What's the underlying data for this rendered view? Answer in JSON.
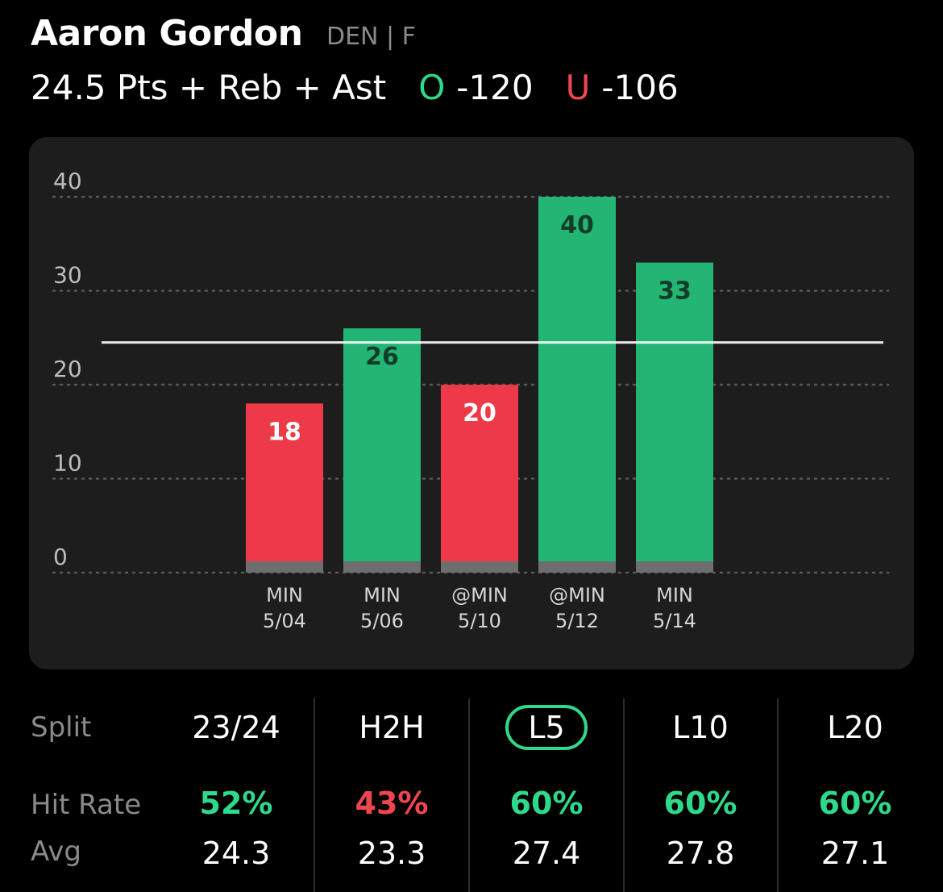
{
  "player": {
    "name": "Aaron Gordon",
    "meta": "DEN | F"
  },
  "line": {
    "market": "24.5 Pts + Reb + Ast",
    "over_letter": "O",
    "over_odds": "-120",
    "under_letter": "U",
    "under_odds": "-106"
  },
  "colors": {
    "over": "#2fd98b",
    "under": "#f0464d",
    "bar_over": "#22b573",
    "bar_under": "#ee3a48",
    "card": "#1d1d1d"
  },
  "chart_data": {
    "type": "bar",
    "ylim": [
      0,
      40
    ],
    "yticks": [
      0,
      10,
      20,
      30,
      40
    ],
    "line_value": 24.5,
    "grid": "dotted-horizontal",
    "categories": [
      {
        "opp": "MIN",
        "date": "5/04"
      },
      {
        "opp": "MIN",
        "date": "5/06"
      },
      {
        "opp": "@MIN",
        "date": "5/10"
      },
      {
        "opp": "@MIN",
        "date": "5/12"
      },
      {
        "opp": "MIN",
        "date": "5/14"
      }
    ],
    "values": [
      18,
      26,
      20,
      40,
      33
    ],
    "results": [
      "under",
      "over",
      "under",
      "over",
      "over"
    ]
  },
  "splits": {
    "split_label": "Split",
    "hit_label": "Hit Rate",
    "avg_label": "Avg",
    "columns": [
      {
        "period": "23/24",
        "hit_rate": "52%",
        "hit_color": "over",
        "avg": "24.3",
        "selected": false
      },
      {
        "period": "H2H",
        "hit_rate": "43%",
        "hit_color": "under",
        "avg": "23.3",
        "selected": false
      },
      {
        "period": "L5",
        "hit_rate": "60%",
        "hit_color": "over",
        "avg": "27.4",
        "selected": true
      },
      {
        "period": "L10",
        "hit_rate": "60%",
        "hit_color": "over",
        "avg": "27.8",
        "selected": false
      },
      {
        "period": "L20",
        "hit_rate": "60%",
        "hit_color": "over",
        "avg": "27.1",
        "selected": false
      }
    ]
  }
}
